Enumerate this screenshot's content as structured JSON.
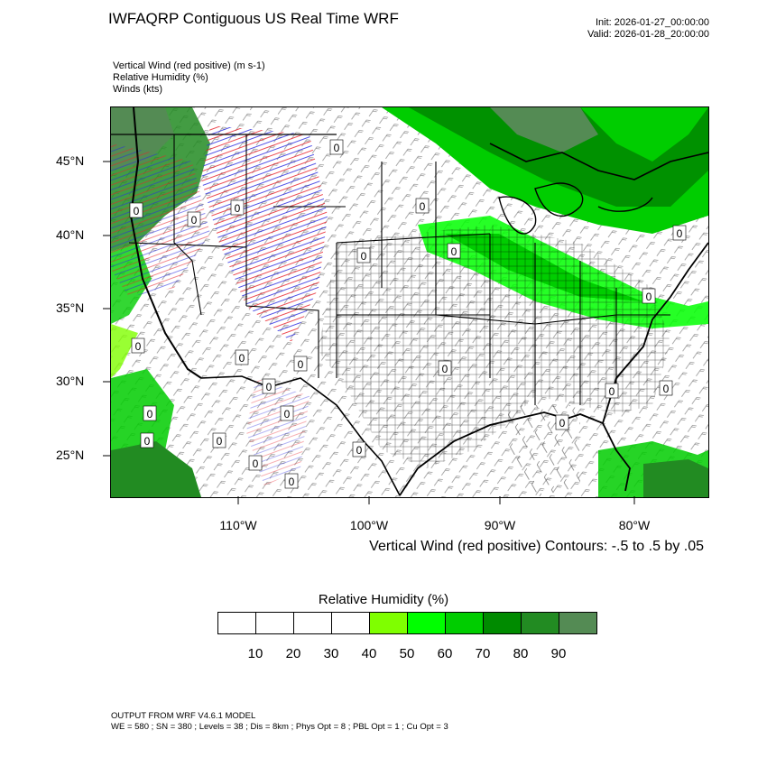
{
  "header": {
    "title": "IWFAQRP Contiguous US Real Time WRF",
    "init": "Init: 2026-01-27_00:00:00",
    "valid": "Valid: 2026-01-28_20:00:00"
  },
  "fields": [
    "Vertical Wind (red positive)   (m s-1)",
    "Relative Humidity   (%)",
    "Winds   (kts)"
  ],
  "map": {
    "lat_labels": [
      "45°N",
      "40°N",
      "35°N",
      "30°N",
      "25°N"
    ],
    "lon_labels": [
      "110°W",
      "100°W",
      "90°W",
      "80°W"
    ],
    "contour_zero_label": "0",
    "contour_note": "Vertical Wind (red positive) Contours: -.5 to .5 by .05",
    "colors": {
      "land_line": "#000000",
      "updraft": "#e8202a",
      "downdraft": "#2a2ae0"
    }
  },
  "legend": {
    "title": "Relative Humidity   (%)",
    "colors": [
      "#ffffff",
      "#ffffff",
      "#ffffff",
      "#ffffff",
      "#7fff00",
      "#00ff00",
      "#00cd00",
      "#008b00",
      "#228b22",
      "#548b54"
    ],
    "ticks": [
      "10",
      "20",
      "30",
      "40",
      "50",
      "60",
      "70",
      "80",
      "90"
    ]
  },
  "footer": {
    "line1": "OUTPUT FROM WRF V4.6.1 MODEL",
    "line2": "WE = 580 ; SN = 380 ; Levels = 38 ; Dis = 8km ; Phys Opt = 8 ; PBL Opt = 1 ; Cu Opt = 3"
  }
}
